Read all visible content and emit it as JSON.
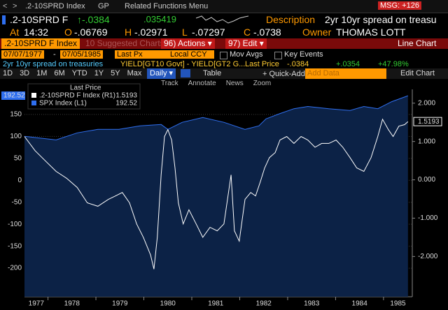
{
  "toolbar": {
    "back": "<",
    "forward": ">",
    "security": ".2-10SPRD Index",
    "gp": "GP",
    "related": "Related Functions Menu",
    "msg": "MSG: +126"
  },
  "quote": {
    "ticker": ".2-10SPRD F",
    "change": "↑-.0384",
    "value": ".035419",
    "description_label": "Description",
    "description": "2yr 10yr spread on treasu",
    "at_label": "At",
    "time": "14:32",
    "open_label": "O",
    "open": "-.06769",
    "high_label": "H",
    "high": "-.02971",
    "low_label": "L",
    "low": "-.07297",
    "close_label": "C",
    "close": "-.0738",
    "owner_label": "Owner",
    "owner": "THOMAS LOTT"
  },
  "menu": {
    "security": ".2-10SPRD F Index",
    "suggested": "10 Suggested Charts",
    "actions": "96) Actions ▾",
    "edit": "97) Edit ▾",
    "chart_type": "Line Chart"
  },
  "settings": {
    "start": "07/07/1977",
    "dash": "-",
    "end": "07/05/1985",
    "field": "Last Px",
    "currency": "Local CCY",
    "mov_avgs": "Mov Avgs",
    "key_events": "Key Events"
  },
  "info": {
    "description": "2yr 10yr spread on treasuries",
    "formula": "YIELD[GT10 Govt] - YIELD[GT2 G...",
    "field": "Last Price",
    "last": "-.0384",
    "change": "+.0354",
    "pct_change": "+47.98%"
  },
  "periods": [
    "1D",
    "3D",
    "1M",
    "6M",
    "YTD",
    "1Y",
    "5Y",
    "Max"
  ],
  "controls": {
    "frequency": "Daily ▾",
    "table": "Table",
    "quick_add": "+ Quick-Add ▾",
    "add_data": "Add Data",
    "edit_chart": "Edit Chart"
  },
  "tools": [
    "Track",
    "Annotate",
    "News",
    "Zoom"
  ],
  "chart_data": {
    "type": "line",
    "legend_title": "Last Price",
    "xlim": [
      1977.51,
      1985.6
    ],
    "xticks": [
      1977,
      1978,
      1979,
      1980,
      1981,
      1982,
      1983,
      1984,
      1985
    ],
    "ylim": [
      -265,
      207
    ],
    "yticks": [
      150,
      100,
      50,
      0,
      -50,
      -100,
      -150,
      -200
    ],
    "y2lim": [
      -3.05,
      2.36
    ],
    "y2ticks": [
      {
        "value": 2,
        "label": "2.000"
      },
      {
        "value": 1,
        "label": "1.000"
      },
      {
        "value": 0,
        "label": "0.000"
      },
      {
        "value": -1,
        "label": "-1.000"
      },
      {
        "value": -2,
        "label": "-2.000"
      }
    ],
    "grid": true,
    "area_color": "#0c2246",
    "series": [
      {
        "name": ".2-10SPRD F Index (R1)",
        "color": "#ffffff",
        "axis": "y2",
        "x": [
          1977.51,
          1977.73,
          1977.95,
          1978.17,
          1978.39,
          1978.61,
          1978.82,
          1979.04,
          1979.26,
          1979.41,
          1979.55,
          1979.7,
          1979.85,
          1979.99,
          1980.14,
          1980.21,
          1980.28,
          1980.36,
          1980.43,
          1980.5,
          1980.58,
          1980.65,
          1980.72,
          1980.82,
          1980.94,
          1981.09,
          1981.23,
          1981.38,
          1981.53,
          1981.67,
          1981.82,
          1981.89,
          1981.99,
          1982.11,
          1982.23,
          1982.33,
          1982.43,
          1982.52,
          1982.62,
          1982.74,
          1982.84,
          1982.98,
          1983.13,
          1983.28,
          1983.42,
          1983.57,
          1983.71,
          1983.86,
          1984.01,
          1984.15,
          1984.3,
          1984.44,
          1984.59,
          1984.74,
          1984.88,
          1984.98,
          1985.1,
          1985.2,
          1985.32,
          1985.44,
          1985.51
        ],
        "values": [
          1.13,
          0.76,
          0.49,
          0.22,
          0.04,
          -0.2,
          -0.6,
          -0.69,
          -0.51,
          -0.42,
          -0.33,
          -0.6,
          -1.15,
          -1.5,
          -1.96,
          -2.33,
          -1.5,
          0.13,
          1.13,
          1.31,
          1.04,
          0.31,
          -0.6,
          -1.15,
          -0.78,
          -1.15,
          -1.5,
          -1.24,
          -1.33,
          -1.15,
          0.13,
          -1.33,
          -1.6,
          -0.51,
          -0.33,
          -0.42,
          -0.05,
          0.31,
          0.58,
          0.71,
          1.04,
          1.13,
          0.95,
          1.13,
          1.04,
          0.85,
          0.95,
          0.95,
          1.04,
          0.85,
          0.58,
          0.31,
          0.22,
          0.58,
          1.13,
          1.58,
          1.31,
          1.13,
          1.4,
          1.44,
          1.5193
        ]
      },
      {
        "name": "SPX Index (L1)",
        "color": "#2f6ff0",
        "axis": "y",
        "x": [
          1977.51,
          1978.17,
          1978.61,
          1979.04,
          1979.48,
          1979.92,
          1980.36,
          1980.5,
          1980.8,
          1981.23,
          1981.67,
          1982.11,
          1982.4,
          1982.55,
          1982.84,
          1983.13,
          1983.42,
          1983.86,
          1984.3,
          1984.59,
          1984.88,
          1985.17,
          1985.51
        ],
        "values": [
          100,
          92,
          108,
          116,
          116,
          124,
          127,
          116,
          132,
          143,
          132,
          116,
          124,
          140,
          152,
          163,
          168,
          163,
          159,
          168,
          163,
          179,
          192.52
        ]
      }
    ]
  }
}
